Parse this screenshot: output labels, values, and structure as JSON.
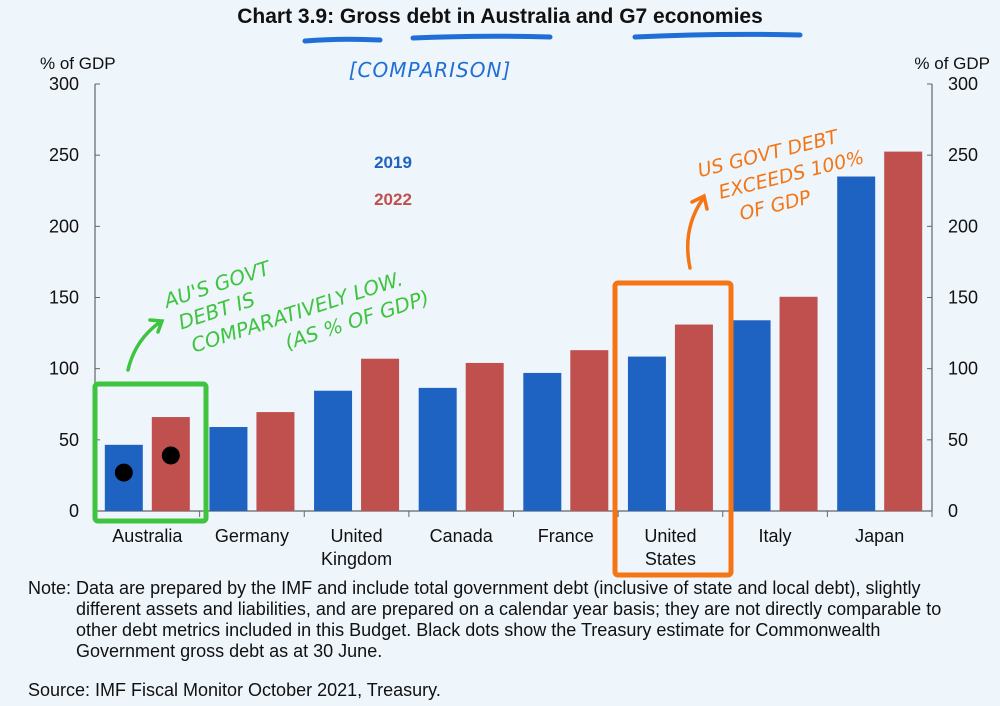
{
  "chart_data": {
    "type": "bar",
    "title": "Chart 3.9: Gross debt in Australia and G7 economies",
    "ylabel_left": "% of GDP",
    "ylabel_right": "% of GDP",
    "ylim": [
      0,
      300
    ],
    "yticks": [
      0,
      50,
      100,
      150,
      200,
      250,
      300
    ],
    "categories": [
      "Australia",
      "Germany",
      "United Kingdom",
      "Canada",
      "France",
      "United States",
      "Italy",
      "Japan"
    ],
    "category_lines": [
      [
        "Australia"
      ],
      [
        "Germany"
      ],
      [
        "United",
        "Kingdom"
      ],
      [
        "Canada"
      ],
      [
        "France"
      ],
      [
        "United",
        "States"
      ],
      [
        "Italy"
      ],
      [
        "Japan"
      ]
    ],
    "series": [
      {
        "name": "2019",
        "color": "#1f63c2",
        "values": [
          46.5,
          59,
          84.5,
          86.5,
          97,
          108.5,
          134,
          235
        ]
      },
      {
        "name": "2022",
        "color": "#c0504d",
        "values": [
          66,
          69.5,
          107,
          104,
          113,
          131,
          150.5,
          252.5
        ]
      }
    ],
    "legend_placement": "upper-left-inside",
    "treasury_estimate_dots": {
      "category": "Australia",
      "values_2019": 27,
      "values_2022": 39,
      "color": "#000000"
    },
    "grid": false
  },
  "annotations": {
    "comparison_note": "[COMPARISON]",
    "australia_note": [
      "AU'S GOVT",
      "DEBT IS",
      "COMPARATIVELY LOW.",
      "(AS % OF GDP)"
    ],
    "us_note": [
      "US GOVT DEBT",
      "EXCEEDS 100%",
      "OF GDP"
    ],
    "green": "#3ec43e",
    "orange": "#f57514",
    "blue": "#1f6fd6"
  },
  "note": {
    "label": "Note: ",
    "text": "Data are prepared by the IMF and include total government debt (inclusive of state and local debt), slightly different assets and liabilities, and are prepared on a calendar year basis; they are not directly comparable to other debt metrics included in this Budget. Black dots show the Treasury estimate for Commonwealth Government gross debt as at 30 June."
  },
  "source": "Source: IMF Fiscal Monitor October 2021, Treasury."
}
